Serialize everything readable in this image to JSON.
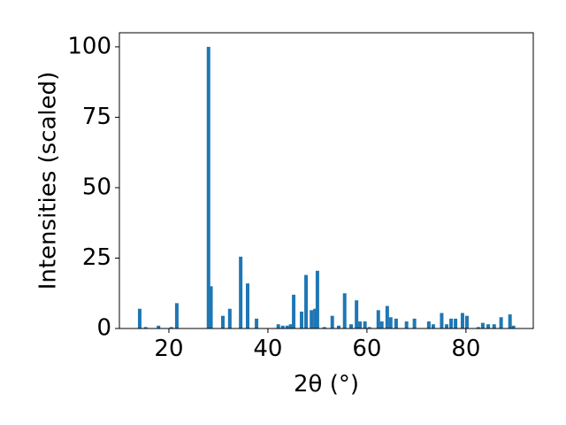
{
  "chart_data": {
    "type": "bar",
    "x": [
      14.1,
      15.3,
      17.9,
      20.5,
      21.6,
      28.0,
      28.5,
      30.9,
      32.3,
      34.5,
      35.9,
      37.7,
      42.1,
      43.0,
      43.9,
      44.6,
      45.2,
      46.8,
      47.7,
      48.8,
      49.5,
      50.0,
      51.4,
      53.0,
      54.3,
      55.5,
      56.8,
      57.9,
      58.6,
      59.6,
      60.5,
      62.3,
      63.0,
      64.1,
      64.8,
      65.9,
      68.0,
      69.6,
      72.5,
      73.4,
      75.1,
      76.1,
      77.0,
      77.9,
      79.3,
      80.2,
      82.5,
      83.4,
      84.5,
      85.7,
      87.1,
      88.9,
      89.6
    ],
    "values": [
      7,
      0.5,
      1,
      0.5,
      9,
      100,
      15,
      4.5,
      7,
      25.5,
      16,
      3.5,
      1.5,
      1,
      1,
      1.5,
      12,
      6,
      19,
      6.5,
      7,
      20.5,
      0.5,
      4.5,
      1,
      12.5,
      1.5,
      10,
      2.5,
      2.5,
      0.5,
      6.5,
      2.5,
      8,
      4,
      3.5,
      2.5,
      3.5,
      2.5,
      1.5,
      5.5,
      1.5,
      3.5,
      3.5,
      5.5,
      4.5,
      0.5,
      2,
      1.5,
      1.5,
      4,
      5,
      1
    ],
    "color": "#1f77b4",
    "x_label": "2θ (°)",
    "y_label": "Intensities (scaled)",
    "xlim": [
      10,
      93.6
    ],
    "ylim": [
      0,
      105
    ],
    "xticks": [
      20,
      40,
      60,
      80
    ],
    "yticks": [
      0,
      25,
      50,
      75,
      100
    ]
  }
}
